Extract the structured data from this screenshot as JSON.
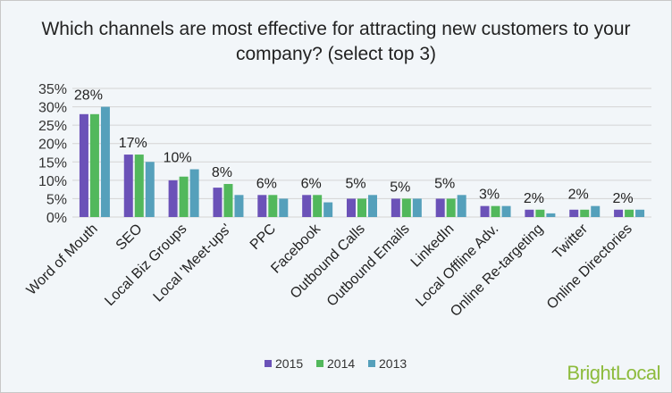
{
  "chart_data": {
    "type": "bar",
    "title": "Which channels are most effective for attracting new customers to your company? (select top 3)",
    "categories": [
      "Word of Mouth",
      "SEO",
      "Local Biz Groups",
      "Local 'Meet-ups'",
      "PPC",
      "Facebook",
      "Outbound Calls",
      "Outbound Emails",
      "LinkedIn",
      "Local Offline Adv.",
      "Online Re-targeting",
      "Twitter",
      "Online Directories"
    ],
    "series": [
      {
        "name": "2015",
        "color": "#6b52b8",
        "values": [
          28,
          17,
          10,
          8,
          6,
          6,
          5,
          5,
          5,
          3,
          2,
          2,
          2
        ]
      },
      {
        "name": "2014",
        "color": "#52b85c",
        "values": [
          28,
          17,
          11,
          9,
          6,
          6,
          5,
          5,
          5,
          3,
          2,
          2,
          2
        ]
      },
      {
        "name": "2013",
        "color": "#55a0bb",
        "values": [
          30,
          15,
          13,
          6,
          5,
          4,
          6,
          5,
          6,
          3,
          1,
          3,
          2
        ]
      }
    ],
    "data_labels": [
      "28%",
      "17%",
      "10%",
      "8%",
      "6%",
      "6%",
      "5%",
      "5%",
      "5%",
      "3%",
      "2%",
      "2%",
      "2%"
    ],
    "yticks": [
      "0%",
      "5%",
      "10%",
      "15%",
      "20%",
      "25%",
      "30%",
      "35%"
    ],
    "ylim": [
      0,
      35
    ],
    "grid": true,
    "legend": "bottom"
  },
  "logo": "BrightLocal"
}
